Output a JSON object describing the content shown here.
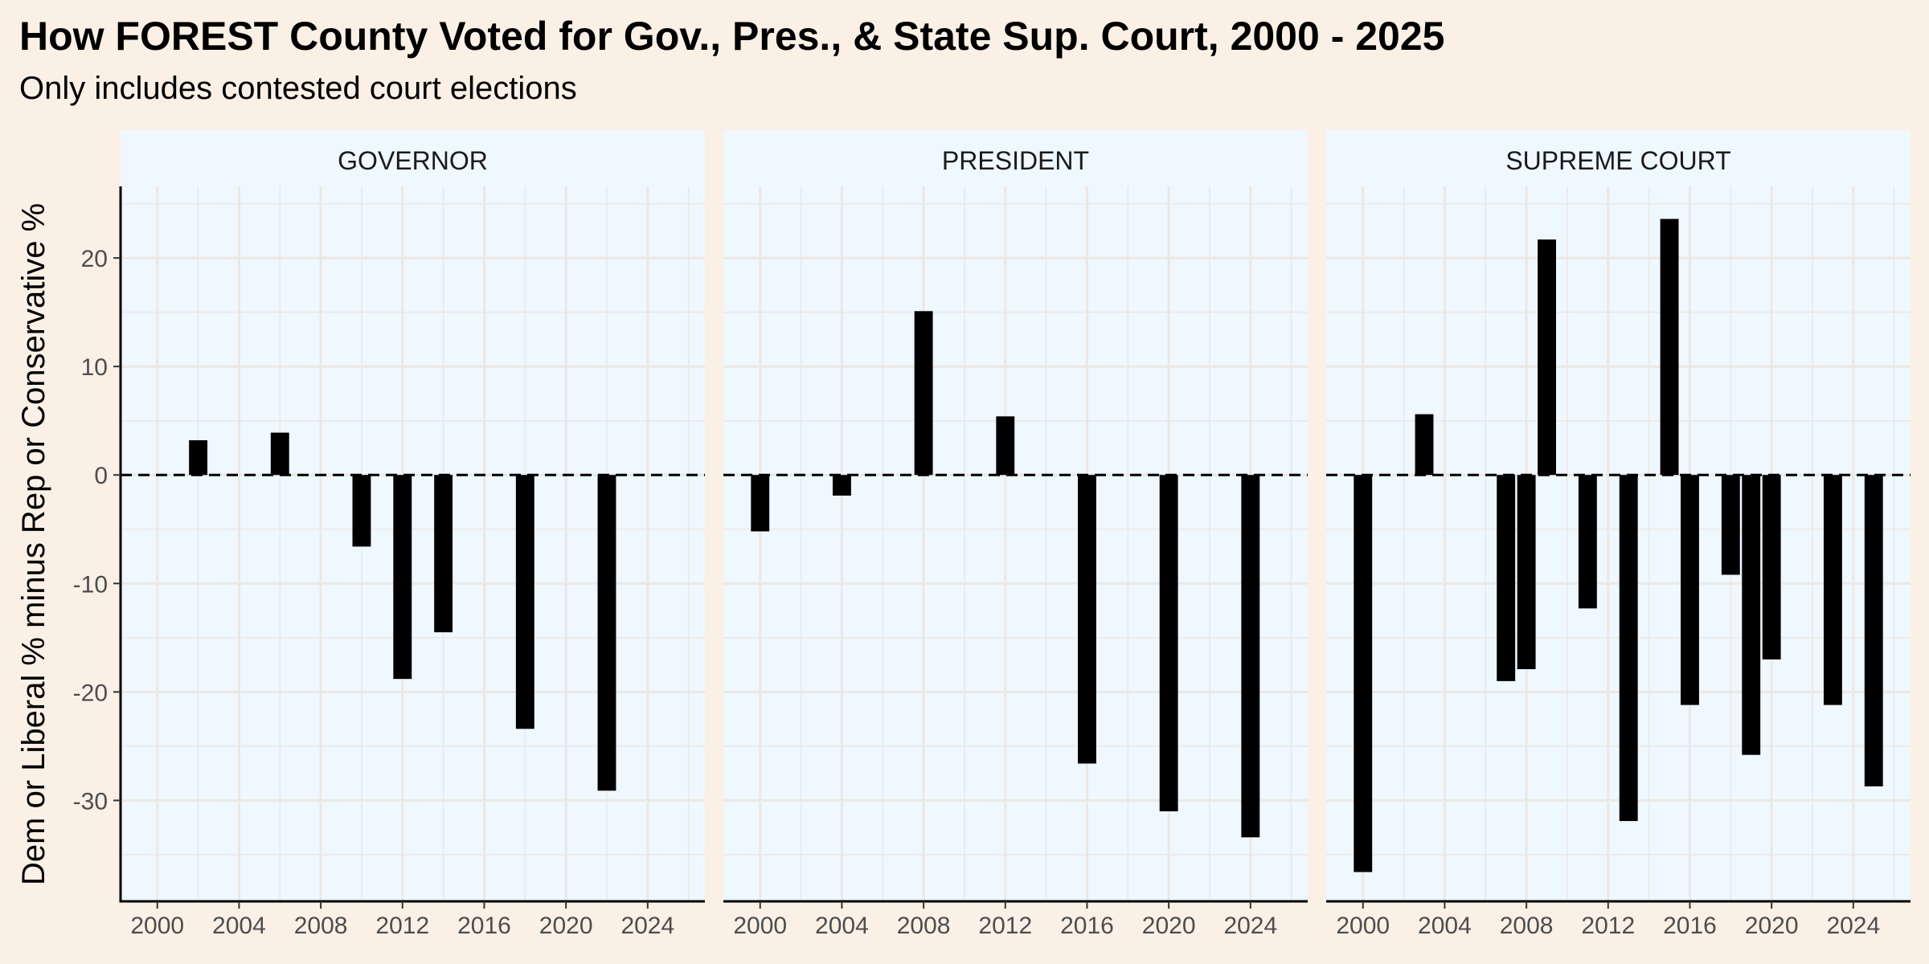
{
  "title": "How FOREST County Voted for Gov., Pres., & State Sup. Court, 2000 - 2025",
  "subtitle": "Only includes contested court elections",
  "colors": {
    "page_background": "#fbf0e5",
    "panel_background": "#eff7ff",
    "strip_background": "#eff7ff",
    "bar": "#000000",
    "gridline": "#ebe8e4"
  },
  "chart_data": {
    "type": "bar",
    "ylabel": "Dem or Liberal % minus Rep or Conservative %",
    "xlabel": "",
    "x_ticks": [
      2000,
      2004,
      2008,
      2012,
      2016,
      2020,
      2024
    ],
    "y_ticks": [
      20,
      10,
      0,
      -10,
      -20,
      -30
    ],
    "xlim": [
      1998.2,
      2026.8
    ],
    "ylim": [
      -39.3,
      26.6
    ],
    "zero_line": "dashed",
    "grid": true,
    "panels": [
      {
        "name": "GOVERNOR",
        "x": [
          2002,
          2006,
          2010,
          2012,
          2014,
          2018,
          2022
        ],
        "values": [
          3.2,
          3.9,
          -6.6,
          -18.8,
          -14.5,
          -23.4,
          -29.1
        ]
      },
      {
        "name": "PRESIDENT",
        "x": [
          2000,
          2004,
          2008,
          2012,
          2016,
          2020,
          2024
        ],
        "values": [
          -5.2,
          -1.9,
          15.1,
          5.4,
          -26.6,
          -31.0,
          -33.4
        ]
      },
      {
        "name": "SUPREME COURT",
        "x": [
          2000,
          2003,
          2007,
          2008,
          2009,
          2011,
          2013,
          2015,
          2016,
          2018,
          2019,
          2020,
          2023,
          2025
        ],
        "values": [
          -36.6,
          5.6,
          -19.0,
          -17.9,
          21.7,
          -12.3,
          -31.9,
          23.6,
          -21.2,
          -9.2,
          -25.8,
          -17.0,
          -21.2,
          -28.7
        ]
      }
    ]
  }
}
